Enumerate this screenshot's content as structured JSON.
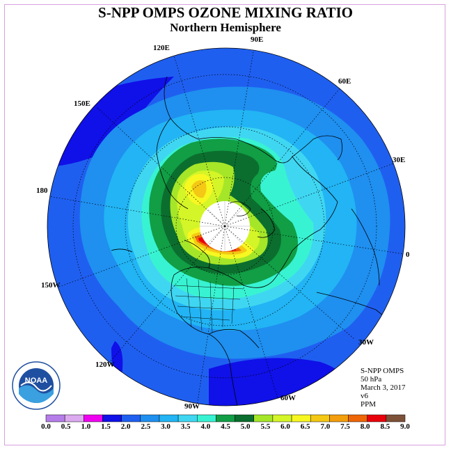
{
  "title": "S-NPP OMPS OZONE MIXING RATIO",
  "subtitle": "Northern Hemisphere",
  "longitude_labels": [
    {
      "text": "90E",
      "lon": 90
    },
    {
      "text": "60E",
      "lon": 60
    },
    {
      "text": "30E",
      "lon": 30
    },
    {
      "text": "0",
      "lon": 0
    },
    {
      "text": "30W",
      "lon": -30
    },
    {
      "text": "60W",
      "lon": -60
    },
    {
      "text": "90W",
      "lon": -90
    },
    {
      "text": "120W",
      "lon": -120
    },
    {
      "text": "150W",
      "lon": -150
    },
    {
      "text": "180",
      "lon": 180
    },
    {
      "text": "150E",
      "lon": 150
    },
    {
      "text": "120E",
      "lon": 120
    }
  ],
  "info": {
    "instrument": "S-NPP OMPS",
    "pressure_level": "50 hPa",
    "date": "March 3, 2017",
    "version": "v6",
    "units": "PPM"
  },
  "logo_text": "NOAA",
  "colorbar": {
    "labels": [
      "0.0",
      "0.5",
      "1.0",
      "1.5",
      "2.0",
      "2.5",
      "3.0",
      "3.5",
      "4.0",
      "4.5",
      "5.0",
      "5.5",
      "6.0",
      "6.5",
      "7.0",
      "7.5",
      "8.0",
      "8.5",
      "9.0"
    ],
    "colors": [
      "#b57de8",
      "#dcaaf0",
      "#f000f0",
      "#1010e8",
      "#1f5ff0",
      "#1f8ff0",
      "#22b4f4",
      "#3fd6f2",
      "#38f3d2",
      "#119e45",
      "#0b6e2e",
      "#a6e628",
      "#d4f527",
      "#f7f722",
      "#f4c814",
      "#f29e0d",
      "#ee6608",
      "#e8000b",
      "#7d5138"
    ]
  },
  "map_data": {
    "projection": "north-polar-stereographic",
    "variable": "ozone mixing ratio",
    "level_hpa": 50,
    "polar_night_no_data": true,
    "features": [
      {
        "region": "high-latitude Pacific / Bering Sea",
        "range_ppm": [
          2.0,
          2.5
        ]
      },
      {
        "region": "mid-latitude band",
        "range_ppm": [
          3.0,
          3.5
        ]
      },
      {
        "region": "polar vortex collar",
        "range_ppm": [
          4.0,
          5.0
        ]
      },
      {
        "region": "northern Canada maximum",
        "range_ppm": [
          7.5,
          9.0
        ]
      },
      {
        "region": "eastern Siberia secondary maximum",
        "range_ppm": [
          6.0,
          7.0
        ]
      },
      {
        "region": "tropical Atlantic and Pacific",
        "range_ppm": [
          1.5,
          2.0
        ]
      }
    ]
  }
}
